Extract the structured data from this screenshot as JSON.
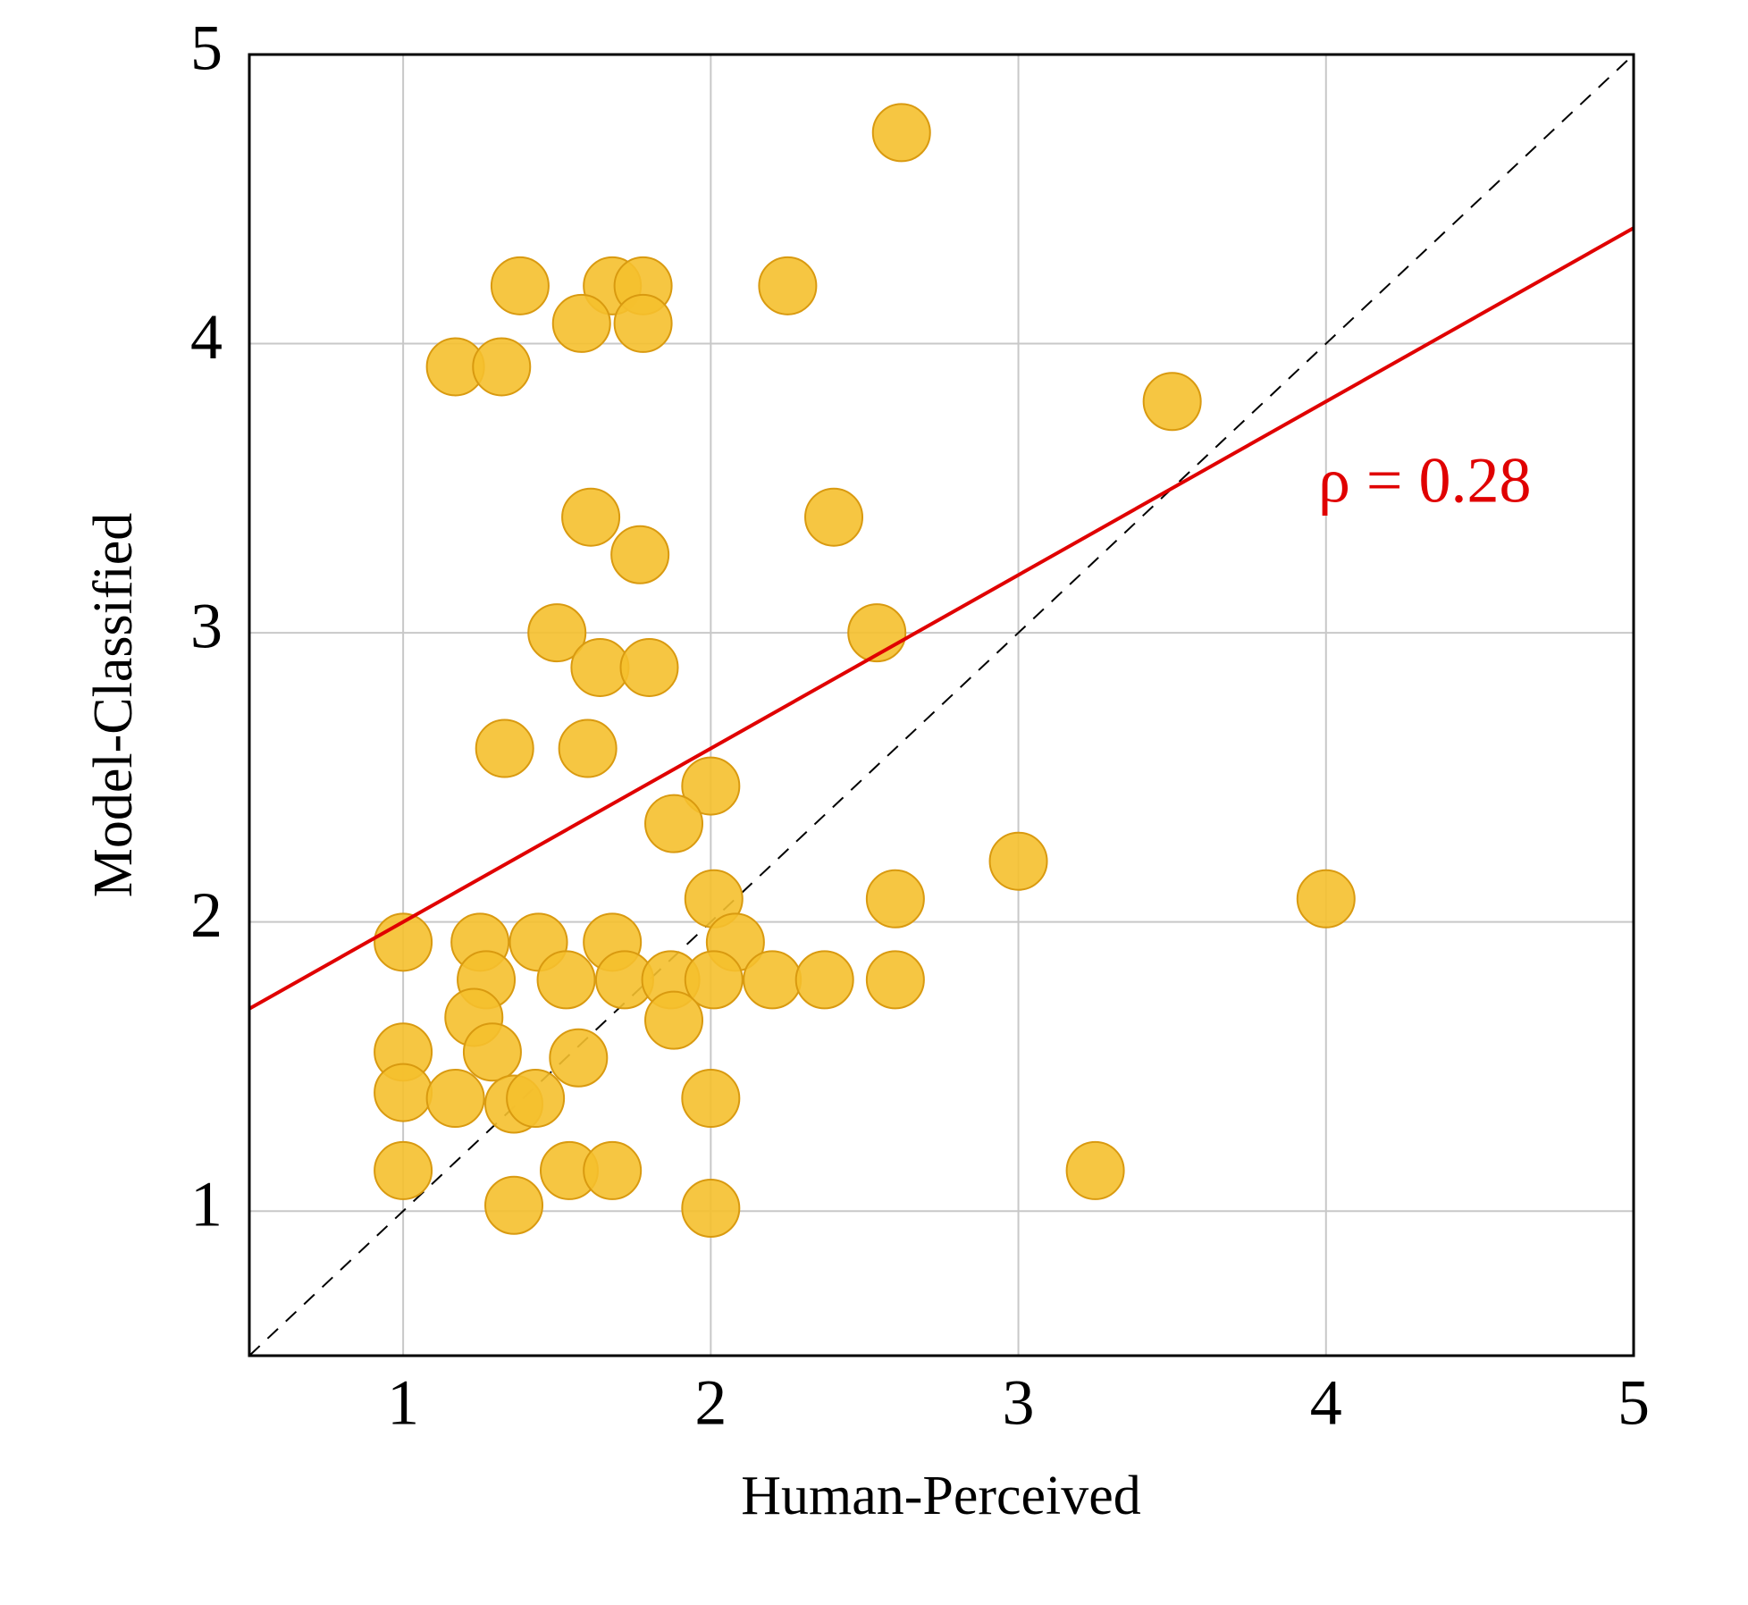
{
  "chart_data": {
    "type": "scatter",
    "xlabel": "Human-Perceived",
    "ylabel": "Model-Classified",
    "annotation": "ρ = 0.28",
    "x": [
      2.62,
      1.38,
      1.68,
      1.78,
      1.58,
      1.78,
      2.25,
      1.17,
      1.32,
      3.5,
      1.61,
      1.77,
      2.4,
      1.5,
      2.54,
      1.64,
      1.8,
      1.33,
      1.6,
      2.0,
      1.88,
      3.0,
      2.01,
      2.6,
      4.0,
      1.0,
      1.25,
      1.44,
      1.68,
      2.08,
      1.27,
      1.53,
      1.72,
      1.87,
      2.01,
      2.2,
      2.37,
      2.6,
      1.23,
      1.88,
      1.29,
      1.57,
      1.0,
      1.0,
      1.17,
      1.36,
      1.43,
      2.0,
      1.0,
      1.54,
      1.68,
      1.36,
      2.0,
      3.25
    ],
    "series": [
      {
        "color": "#f5c02e",
        "values": [
          4.73,
          4.2,
          4.2,
          4.2,
          4.07,
          4.07,
          4.2,
          3.92,
          3.92,
          3.8,
          3.4,
          3.27,
          3.4,
          3.0,
          3.0,
          2.88,
          2.88,
          2.6,
          2.6,
          2.47,
          2.34,
          2.21,
          2.08,
          2.08,
          2.08,
          1.93,
          1.93,
          1.93,
          1.93,
          1.93,
          1.8,
          1.8,
          1.8,
          1.8,
          1.8,
          1.8,
          1.8,
          1.8,
          1.67,
          1.66,
          1.55,
          1.53,
          1.55,
          1.41,
          1.39,
          1.37,
          1.39,
          1.39,
          1.14,
          1.14,
          1.14,
          1.02,
          1.01,
          1.14
        ]
      }
    ],
    "fit": {
      "x": [
        0.5,
        5
      ],
      "y": [
        1.7,
        4.4
      ],
      "color": "#e00000"
    },
    "xlim": [
      0.5,
      5
    ],
    "ylim": [
      0.5,
      5
    ],
    "xticks": [
      1,
      2,
      3,
      4,
      5
    ],
    "yticks": [
      1,
      2,
      3,
      4,
      5
    ],
    "grid": true
  }
}
